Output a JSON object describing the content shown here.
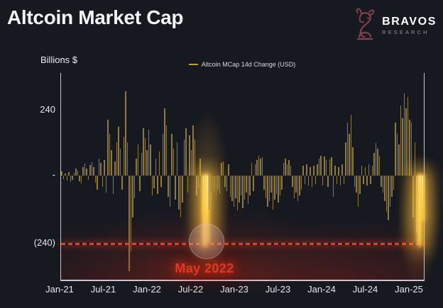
{
  "header": {
    "title": "Altcoin Market Cap"
  },
  "logo": {
    "brand": "BRAVOS",
    "subtitle": "RESEARCH",
    "icon": "bull-knight-icon",
    "icon_color": "#83404c"
  },
  "chart": {
    "y_axis_label": "Billions $",
    "legend_label": "Altcoin MCap 14d Change (USD)",
    "legend_swatch_color": "#c79d2e",
    "y_ticks": [
      "240",
      "-",
      "(240)"
    ],
    "x_ticks": [
      "Jan-21",
      "Jul-21",
      "Jan-22",
      "Jul-22",
      "Jan-23",
      "Jul-23",
      "Jan-24",
      "Jul-24",
      "Jan-25"
    ],
    "annotation": {
      "label": "May 2022",
      "color": "#e23524"
    }
  },
  "colors": {
    "background": "#171920",
    "bar_gold": "#8e7a3c",
    "bright_bar": "#ffd84a",
    "axis_line": "#c2c5ca",
    "reference_red": "#e8432e",
    "tick_text": "#e8e9eb"
  },
  "chart_data": {
    "type": "bar",
    "title": "Altcoin Market Cap",
    "series_name": "Altcoin MCap 14d Change (USD)",
    "ylabel": "Billions $",
    "unit": "billions USD",
    "y_tick_labels": [
      "240",
      "-",
      "(240)"
    ],
    "y_tick_values": [
      240,
      0,
      -240
    ],
    "ylim": [
      -370,
      365
    ],
    "x_start": "Jan-21",
    "x_end": "Feb-25",
    "x_tick_labels": [
      "Jan-21",
      "Jul-21",
      "Jan-22",
      "Jul-22",
      "Jan-23",
      "Jul-23",
      "Jan-24",
      "Jul-24",
      "Jan-25"
    ],
    "values": [
      15,
      -12,
      8,
      -18,
      12,
      -22,
      -15,
      10,
      25,
      18,
      -20,
      -28,
      30,
      42,
      25,
      -15,
      38,
      48,
      30,
      -25,
      -50,
      60,
      45,
      -40,
      55,
      -60,
      200,
      150,
      90,
      -65,
      50,
      120,
      175,
      95,
      -50,
      140,
      300,
      120,
      -340,
      -270,
      -150,
      -80,
      60,
      110,
      -55,
      80,
      170,
      135,
      90,
      165,
      110,
      -70,
      -45,
      60,
      -65,
      85,
      -40,
      150,
      240,
      180,
      -75,
      -110,
      150,
      95,
      -85,
      120,
      -120,
      -150,
      -95,
      130,
      170,
      -60,
      145,
      90,
      180,
      130,
      -70,
      -45,
      60,
      -140,
      -250,
      -248,
      -235,
      -120,
      -60,
      -45,
      -55,
      -70,
      -50,
      -65,
      45,
      50,
      -40,
      -55,
      40,
      -75,
      -90,
      -110,
      -80,
      -125,
      -95,
      -70,
      -115,
      -85,
      -60,
      -100,
      -70,
      45,
      -55,
      40,
      55,
      70,
      60,
      65,
      -50,
      -80,
      -110,
      -90,
      -60,
      -120,
      -85,
      -65,
      -95,
      -70,
      -50,
      45,
      60,
      40,
      55,
      35,
      -40,
      -80,
      -60,
      -90,
      -70,
      -50,
      35,
      -30,
      40,
      -35,
      30,
      -40,
      35,
      -30,
      40,
      60,
      70,
      -35,
      68,
      55,
      -40,
      58,
      65,
      -75,
      35,
      -30,
      30,
      -35,
      40,
      -30,
      120,
      190,
      150,
      218,
      100,
      -40,
      -60,
      -110,
      -65,
      35,
      -30,
      30,
      -35,
      40,
      -30,
      35,
      80,
      117,
      95,
      70,
      -40,
      -60,
      -90,
      -130,
      -160,
      -110,
      -75,
      -50,
      190,
      150,
      110,
      250,
      205,
      292,
      240,
      280,
      200,
      190,
      -150,
      120,
      -205,
      -240,
      -250,
      -160
    ],
    "bright_indices": [
      80,
      81,
      82,
      201,
      202,
      203
    ],
    "reference_line": {
      "value": -240,
      "style": "dashed",
      "color": "#e8432e"
    },
    "annotation": {
      "label": "May 2022",
      "color": "#e23524",
      "points_to": "circled deep negative spike at the (240) reference line"
    },
    "legend_position": "top-center",
    "grid": false
  }
}
